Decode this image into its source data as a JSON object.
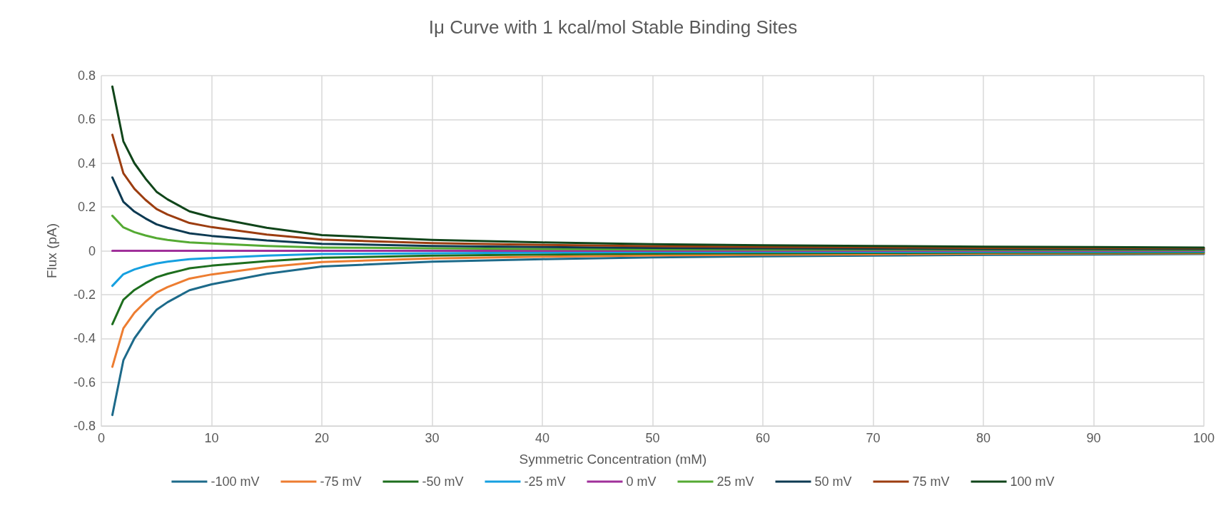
{
  "chart_data": {
    "type": "line",
    "title": "Iμ Curve with 1 kcal/mol Stable Binding Sites",
    "xlabel": "Symmetric Concentration (mM)",
    "ylabel": "Flux (pA)",
    "x": [
      1,
      2,
      3,
      4,
      5,
      6,
      8,
      10,
      15,
      20,
      30,
      40,
      50,
      60,
      70,
      80,
      90,
      100
    ],
    "xlim": [
      0,
      100
    ],
    "xticks": [
      0,
      10,
      20,
      30,
      40,
      50,
      60,
      70,
      80,
      90,
      100
    ],
    "ylim": [
      -0.8,
      0.8
    ],
    "yticks": [
      -0.8,
      -0.6,
      -0.4,
      -0.2,
      0,
      0.2,
      0.4,
      0.6,
      0.8
    ],
    "grid": true,
    "legend": "bottom",
    "marker": "none",
    "line_style": "solid",
    "series": [
      {
        "name": "-100 mV",
        "color": "#1d6a8a",
        "values": [
          -0.75,
          -0.5,
          -0.4,
          -0.33,
          -0.27,
          -0.235,
          -0.18,
          -0.153,
          -0.105,
          -0.072,
          -0.05,
          -0.038,
          -0.03,
          -0.025,
          -0.022,
          -0.019,
          -0.017,
          -0.015
        ]
      },
      {
        "name": "-75 mV",
        "color": "#ed7d31",
        "values": [
          -0.53,
          -0.354,
          -0.283,
          -0.233,
          -0.191,
          -0.166,
          -0.127,
          -0.108,
          -0.074,
          -0.051,
          -0.035,
          -0.027,
          -0.021,
          -0.018,
          -0.016,
          -0.013,
          -0.012,
          -0.011
        ]
      },
      {
        "name": "-50 mV",
        "color": "#1e6e1e",
        "values": [
          -0.335,
          -0.224,
          -0.179,
          -0.148,
          -0.121,
          -0.105,
          -0.08,
          -0.068,
          -0.047,
          -0.032,
          -0.022,
          -0.017,
          -0.013,
          -0.011,
          -0.01,
          -0.008,
          -0.008,
          -0.007
        ]
      },
      {
        "name": "-25 mV",
        "color": "#16a0e0",
        "values": [
          -0.16,
          -0.107,
          -0.085,
          -0.07,
          -0.058,
          -0.05,
          -0.038,
          -0.033,
          -0.022,
          -0.015,
          -0.011,
          -0.008,
          -0.006,
          -0.005,
          -0.005,
          -0.004,
          -0.004,
          -0.003
        ]
      },
      {
        "name": "0 mV",
        "color": "#a0309a",
        "values": [
          0,
          0,
          0,
          0,
          0,
          0,
          0,
          0,
          0,
          0,
          0,
          0,
          0,
          0,
          0,
          0,
          0,
          0
        ]
      },
      {
        "name": "25 mV",
        "color": "#55aa33",
        "values": [
          0.16,
          0.107,
          0.085,
          0.07,
          0.058,
          0.05,
          0.038,
          0.033,
          0.022,
          0.015,
          0.011,
          0.008,
          0.006,
          0.005,
          0.005,
          0.004,
          0.004,
          0.003
        ]
      },
      {
        "name": "50 mV",
        "color": "#0d3a52",
        "values": [
          0.335,
          0.224,
          0.179,
          0.148,
          0.121,
          0.105,
          0.08,
          0.068,
          0.047,
          0.032,
          0.022,
          0.017,
          0.013,
          0.011,
          0.01,
          0.008,
          0.008,
          0.007
        ]
      },
      {
        "name": "75 mV",
        "color": "#9c3d10",
        "values": [
          0.53,
          0.354,
          0.283,
          0.233,
          0.191,
          0.166,
          0.127,
          0.108,
          0.074,
          0.051,
          0.035,
          0.027,
          0.021,
          0.018,
          0.016,
          0.013,
          0.012,
          0.011
        ]
      },
      {
        "name": "100 mV",
        "color": "#10451a",
        "values": [
          0.75,
          0.5,
          0.4,
          0.33,
          0.27,
          0.235,
          0.18,
          0.153,
          0.105,
          0.072,
          0.05,
          0.038,
          0.03,
          0.025,
          0.022,
          0.019,
          0.017,
          0.015
        ]
      }
    ]
  }
}
